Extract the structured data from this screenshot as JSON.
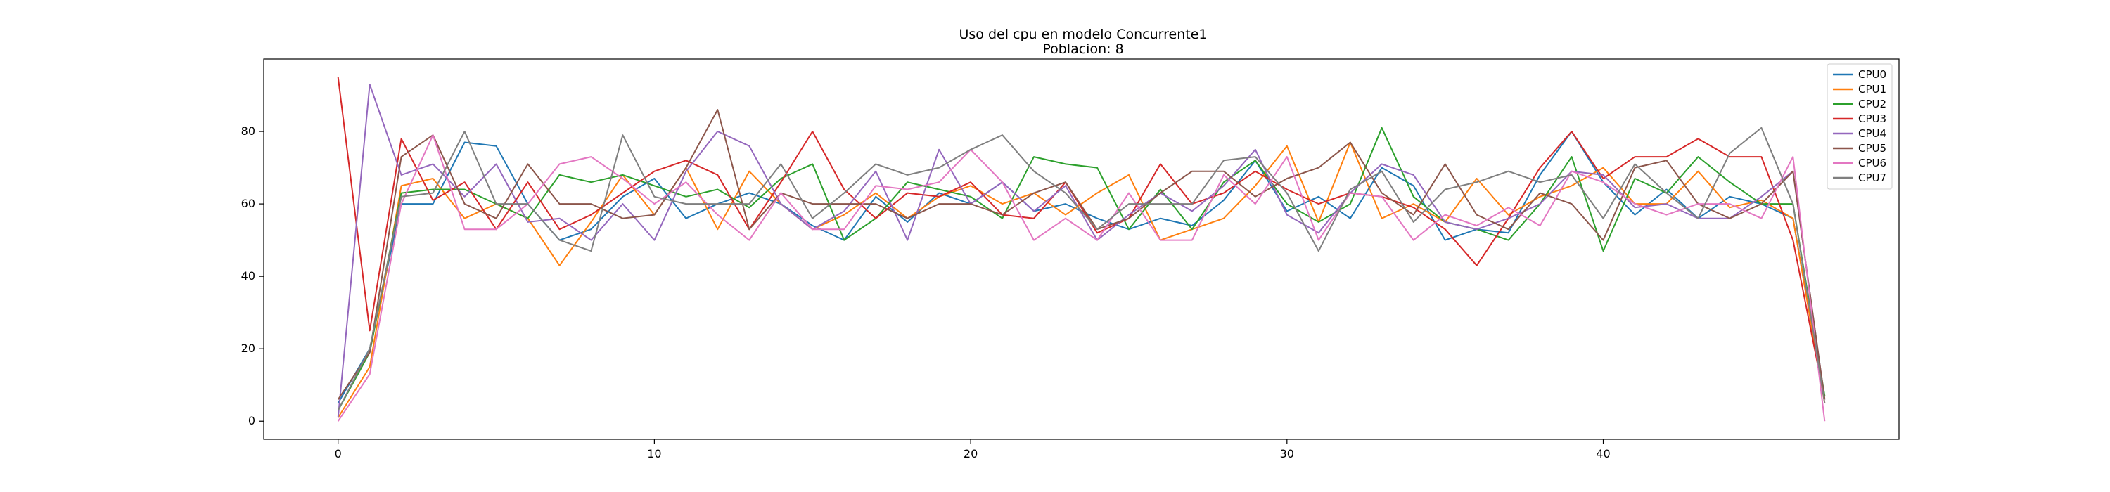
{
  "chart_data": {
    "type": "line",
    "title": "Uso del cpu en modelo Concurrente1",
    "subtitle": "Poblacion: 8",
    "xlabel": "",
    "ylabel": "",
    "xlim": [
      -2.35,
      49.35
    ],
    "ylim": [
      -5,
      100
    ],
    "xticks": [
      0,
      10,
      20,
      30,
      40
    ],
    "yticks": [
      0,
      20,
      40,
      60,
      80
    ],
    "grid": false,
    "legend_position": "top-right",
    "x": [
      0,
      1,
      2,
      3,
      4,
      5,
      6,
      7,
      8,
      9,
      10,
      11,
      12,
      13,
      14,
      15,
      16,
      17,
      18,
      19,
      20,
      21,
      22,
      23,
      24,
      25,
      26,
      27,
      28,
      29,
      30,
      31,
      32,
      33,
      34,
      35,
      36,
      37,
      38,
      39,
      40,
      41,
      42,
      43,
      44,
      45,
      46,
      47
    ],
    "series": [
      {
        "name": "CPU0",
        "color": "#1f77b4",
        "values": [
          5,
          20,
          60,
          60,
          77,
          76,
          60,
          50,
          53,
          62,
          67,
          56,
          60,
          63,
          60,
          54,
          50,
          62,
          55,
          63,
          60,
          66,
          58,
          60,
          56,
          53,
          56,
          54,
          61,
          72,
          58,
          62,
          56,
          70,
          65,
          50,
          53,
          52,
          68,
          80,
          66,
          57,
          64,
          56,
          62,
          60,
          56,
          6
        ]
      },
      {
        "name": "CPU1",
        "color": "#ff7f0e",
        "values": [
          1,
          15,
          65,
          67,
          56,
          60,
          56,
          43,
          55,
          68,
          57,
          70,
          53,
          69,
          60,
          53,
          57,
          63,
          56,
          62,
          65,
          60,
          63,
          57,
          63,
          68,
          50,
          53,
          56,
          65,
          76,
          55,
          77,
          56,
          60,
          55,
          67,
          57,
          62,
          65,
          70,
          60,
          60,
          69,
          59,
          61,
          56,
          5
        ]
      },
      {
        "name": "CPU2",
        "color": "#2ca02c",
        "values": [
          3,
          19,
          63,
          64,
          64,
          60,
          56,
          68,
          66,
          68,
          65,
          62,
          64,
          59,
          67,
          71,
          50,
          56,
          66,
          64,
          62,
          56,
          73,
          71,
          70,
          53,
          64,
          53,
          66,
          72,
          60,
          55,
          60,
          81,
          62,
          55,
          53,
          50,
          60,
          73,
          47,
          67,
          63,
          73,
          66,
          60,
          60,
          7
        ]
      },
      {
        "name": "CPU3",
        "color": "#d62728",
        "values": [
          95,
          25,
          78,
          61,
          66,
          53,
          66,
          53,
          57,
          63,
          69,
          72,
          68,
          53,
          66,
          80,
          64,
          56,
          63,
          62,
          66,
          57,
          56,
          66,
          52,
          56,
          71,
          60,
          63,
          69,
          64,
          60,
          63,
          62,
          59,
          53,
          43,
          56,
          70,
          80,
          67,
          73,
          73,
          78,
          73,
          73,
          50,
          6
        ]
      },
      {
        "name": "CPU4",
        "color": "#9467bd",
        "values": [
          1,
          93,
          68,
          71,
          62,
          71,
          55,
          56,
          50,
          60,
          50,
          69,
          80,
          76,
          60,
          53,
          58,
          69,
          50,
          75,
          60,
          66,
          58,
          65,
          50,
          57,
          63,
          58,
          65,
          75,
          57,
          52,
          63,
          71,
          68,
          55,
          53,
          56,
          60,
          69,
          68,
          59,
          60,
          56,
          56,
          62,
          69,
          6
        ]
      },
      {
        "name": "CPU5",
        "color": "#8c564b",
        "values": [
          6,
          19,
          73,
          79,
          60,
          56,
          71,
          60,
          60,
          56,
          57,
          70,
          86,
          53,
          63,
          60,
          60,
          60,
          56,
          60,
          60,
          57,
          63,
          66,
          53,
          56,
          63,
          69,
          69,
          62,
          67,
          70,
          77,
          63,
          57,
          71,
          57,
          53,
          63,
          60,
          50,
          70,
          72,
          60,
          56,
          60,
          69,
          6
        ]
      },
      {
        "name": "CPU6",
        "color": "#e377c2",
        "values": [
          0,
          13,
          60,
          79,
          53,
          53,
          60,
          71,
          73,
          67,
          60,
          66,
          57,
          50,
          63,
          53,
          53,
          65,
          64,
          66,
          75,
          66,
          50,
          56,
          50,
          63,
          50,
          50,
          68,
          60,
          73,
          50,
          63,
          62,
          50,
          57,
          54,
          59,
          54,
          69,
          66,
          60,
          57,
          60,
          60,
          56,
          73,
          0
        ]
      },
      {
        "name": "CPU7",
        "color": "#7f7f7f",
        "values": [
          3,
          20,
          62,
          63,
          80,
          60,
          60,
          50,
          47,
          79,
          62,
          60,
          60,
          60,
          71,
          56,
          63,
          71,
          68,
          70,
          75,
          79,
          69,
          63,
          53,
          60,
          60,
          60,
          72,
          73,
          63,
          47,
          64,
          69,
          55,
          64,
          66,
          69,
          66,
          68,
          56,
          71,
          63,
          56,
          74,
          81,
          60,
          5
        ]
      }
    ]
  }
}
